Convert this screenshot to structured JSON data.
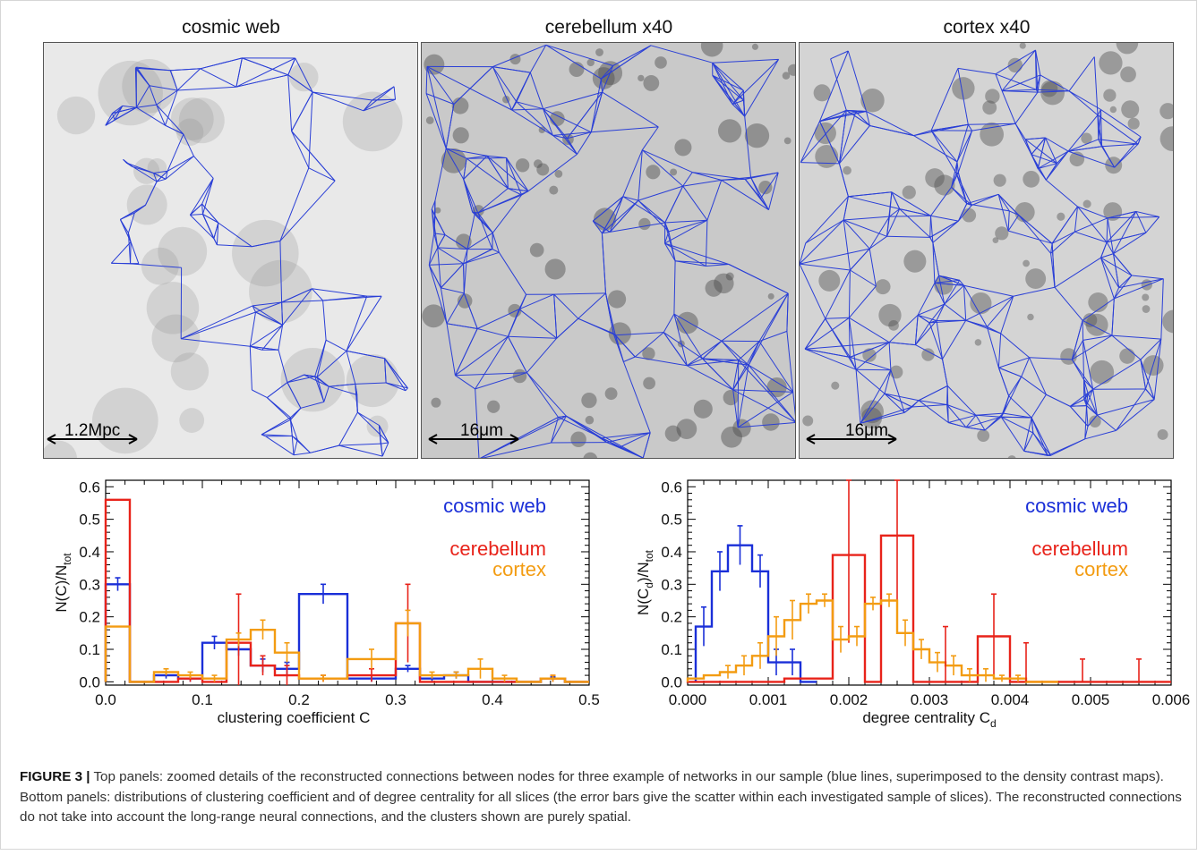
{
  "figure": {
    "panels": [
      {
        "title": "cosmic web",
        "scale": "1.2Mpc",
        "background": "#e9e9e9",
        "blob": "#8f8f8f"
      },
      {
        "title": "cerebellum x40",
        "scale": "16μm",
        "background": "#c9c9c9",
        "blob": "#4b4b4b"
      },
      {
        "title": "cortex x40",
        "scale": "16μm",
        "background": "#d4d4d4",
        "blob": "#555555"
      }
    ],
    "network_color": "#2a3fd6",
    "caption_label": "FIGURE 3 |",
    "caption_text": "Top panels: zoomed details of the reconstructed connections between nodes for three example of networks in our sample (blue lines, superimposed to the density contrast maps). Bottom panels: distributions of clustering coefficient and of degree centrality for all slices (the error bars give the scatter within each investigated sample of slices). The reconstructed connections do not take into account the long-range neural connections, and the clusters shown are purely spatial."
  },
  "colors": {
    "cosmic web": "#1a2fd8",
    "cerebellum": "#e8231a",
    "cortex": "#f39c12"
  },
  "chart_data": [
    {
      "type": "histogram",
      "xlabel": "clustering coefficient C",
      "ylabel": "N(C)/N",
      "ylabel_sub": "tot",
      "xlim": [
        0,
        0.5
      ],
      "ylim": [
        -0.01,
        0.62
      ],
      "xticks": [
        "0.0",
        "0.1",
        "0.2",
        "0.3",
        "0.4",
        "0.5"
      ],
      "yticks": [
        "0.0",
        "0.1",
        "0.2",
        "0.3",
        "0.4",
        "0.5",
        "0.6"
      ],
      "legend": [
        "cosmic web",
        "cerebellum",
        "cortex"
      ],
      "legend_position": "top-right",
      "bin_edges": [
        0,
        0.025,
        0.05,
        0.075,
        0.1,
        0.125,
        0.15,
        0.175,
        0.2,
        0.25,
        0.3,
        0.325,
        0.35,
        0.375,
        0.4,
        0.425,
        0.45,
        0.475,
        0.5
      ],
      "series": [
        {
          "name": "cosmic web",
          "values": [
            0.3,
            0.0,
            0.02,
            0.01,
            0.12,
            0.1,
            0.05,
            0.04,
            0.27,
            0.01,
            0.04,
            0.01,
            0.02,
            0.0,
            0.0,
            0.0,
            0.01,
            0.0
          ],
          "errors": [
            0.02,
            0.0,
            0.01,
            0.01,
            0.02,
            0.02,
            0.02,
            0.02,
            0.03,
            0.01,
            0.01,
            0.01,
            0.01,
            0.0,
            0.0,
            0.0,
            0.005,
            0.0
          ]
        },
        {
          "name": "cerebellum",
          "values": [
            0.56,
            0.0,
            0.0,
            0.01,
            0.0,
            0.12,
            0.05,
            0.02,
            0.01,
            0.02,
            0.18,
            0.0,
            0.0,
            0.0,
            0.0,
            0.0,
            0.01,
            0.0
          ],
          "errors": [
            0.0,
            0.0,
            0.0,
            0.01,
            0.0,
            0.15,
            0.03,
            0.03,
            0.01,
            0.02,
            0.12,
            0.0,
            0.0,
            0.0,
            0.0,
            0.0,
            0.01,
            0.0
          ]
        },
        {
          "name": "cortex",
          "values": [
            0.17,
            0.0,
            0.03,
            0.02,
            0.01,
            0.13,
            0.16,
            0.09,
            0.01,
            0.07,
            0.18,
            0.02,
            0.02,
            0.04,
            0.01,
            0.0,
            0.01,
            0.0
          ],
          "errors": [
            0.0,
            0.0,
            0.01,
            0.01,
            0.01,
            0.02,
            0.03,
            0.03,
            0.01,
            0.03,
            0.04,
            0.01,
            0.01,
            0.03,
            0.01,
            0.0,
            0.01,
            0.0
          ]
        }
      ]
    },
    {
      "type": "histogram",
      "xlabel": "degree centrality C",
      "xlabel_sub": "d",
      "ylabel": "N(C",
      "ylabel_sub": "d",
      "ylabel_tail": ")/N",
      "ylabel_sub2": "tot",
      "xlim": [
        0,
        0.006
      ],
      "ylim": [
        -0.01,
        0.62
      ],
      "xticks": [
        "0.000",
        "0.001",
        "0.002",
        "0.003",
        "0.004",
        "0.005",
        "0.006"
      ],
      "yticks": [
        "0.0",
        "0.1",
        "0.2",
        "0.3",
        "0.4",
        "0.5",
        "0.6"
      ],
      "legend": [
        "cosmic web",
        "cerebellum",
        "cortex"
      ],
      "legend_position": "top-right",
      "series": [
        {
          "name": "cosmic web",
          "bin_edges": [
            0.0001,
            0.0003,
            0.0005,
            0.0008,
            0.001,
            0.0012,
            0.0014,
            0.0016
          ],
          "values": [
            0.17,
            0.34,
            0.42,
            0.34,
            0.06,
            0.06,
            0.0
          ],
          "errors": [
            0.06,
            0.06,
            0.06,
            0.05,
            0.04,
            0.04,
            0.0
          ]
        },
        {
          "name": "cerebellum",
          "bin_edges": [
            0.0,
            0.0012,
            0.0018,
            0.0022,
            0.0024,
            0.0028,
            0.0036,
            0.004,
            0.0058,
            0.006
          ],
          "values": [
            0.0,
            0.01,
            0.39,
            0.0,
            0.45,
            0.0,
            0.14,
            0.0,
            0.0
          ],
          "errors": [
            0.0,
            0.0,
            0.27,
            0.0,
            0.3,
            0.0,
            0.13,
            0.0,
            0.0
          ]
        },
        {
          "name": "cortex",
          "bin_edges": [
            0.0,
            0.0002,
            0.0004,
            0.0006,
            0.0008,
            0.001,
            0.0012,
            0.0014,
            0.0016,
            0.0018,
            0.002,
            0.0022,
            0.0024,
            0.0026,
            0.0028,
            0.003,
            0.0032,
            0.0034,
            0.0036,
            0.0038,
            0.004,
            0.0042,
            0.0044,
            0.0046
          ],
          "values": [
            0.01,
            0.02,
            0.03,
            0.05,
            0.08,
            0.14,
            0.19,
            0.24,
            0.25,
            0.13,
            0.14,
            0.24,
            0.25,
            0.15,
            0.1,
            0.06,
            0.05,
            0.02,
            0.02,
            0.01,
            0.01,
            0.0,
            0.0
          ],
          "errors": [
            0.0,
            0.0,
            0.02,
            0.03,
            0.04,
            0.06,
            0.06,
            0.03,
            0.02,
            0.04,
            0.03,
            0.02,
            0.02,
            0.04,
            0.03,
            0.03,
            0.03,
            0.02,
            0.02,
            0.01,
            0.01,
            0.0,
            0.0
          ]
        }
      ],
      "spikes": {
        "cerebellum_x": [
          0.0032,
          0.0042,
          0.0049,
          0.0056
        ]
      }
    }
  ]
}
